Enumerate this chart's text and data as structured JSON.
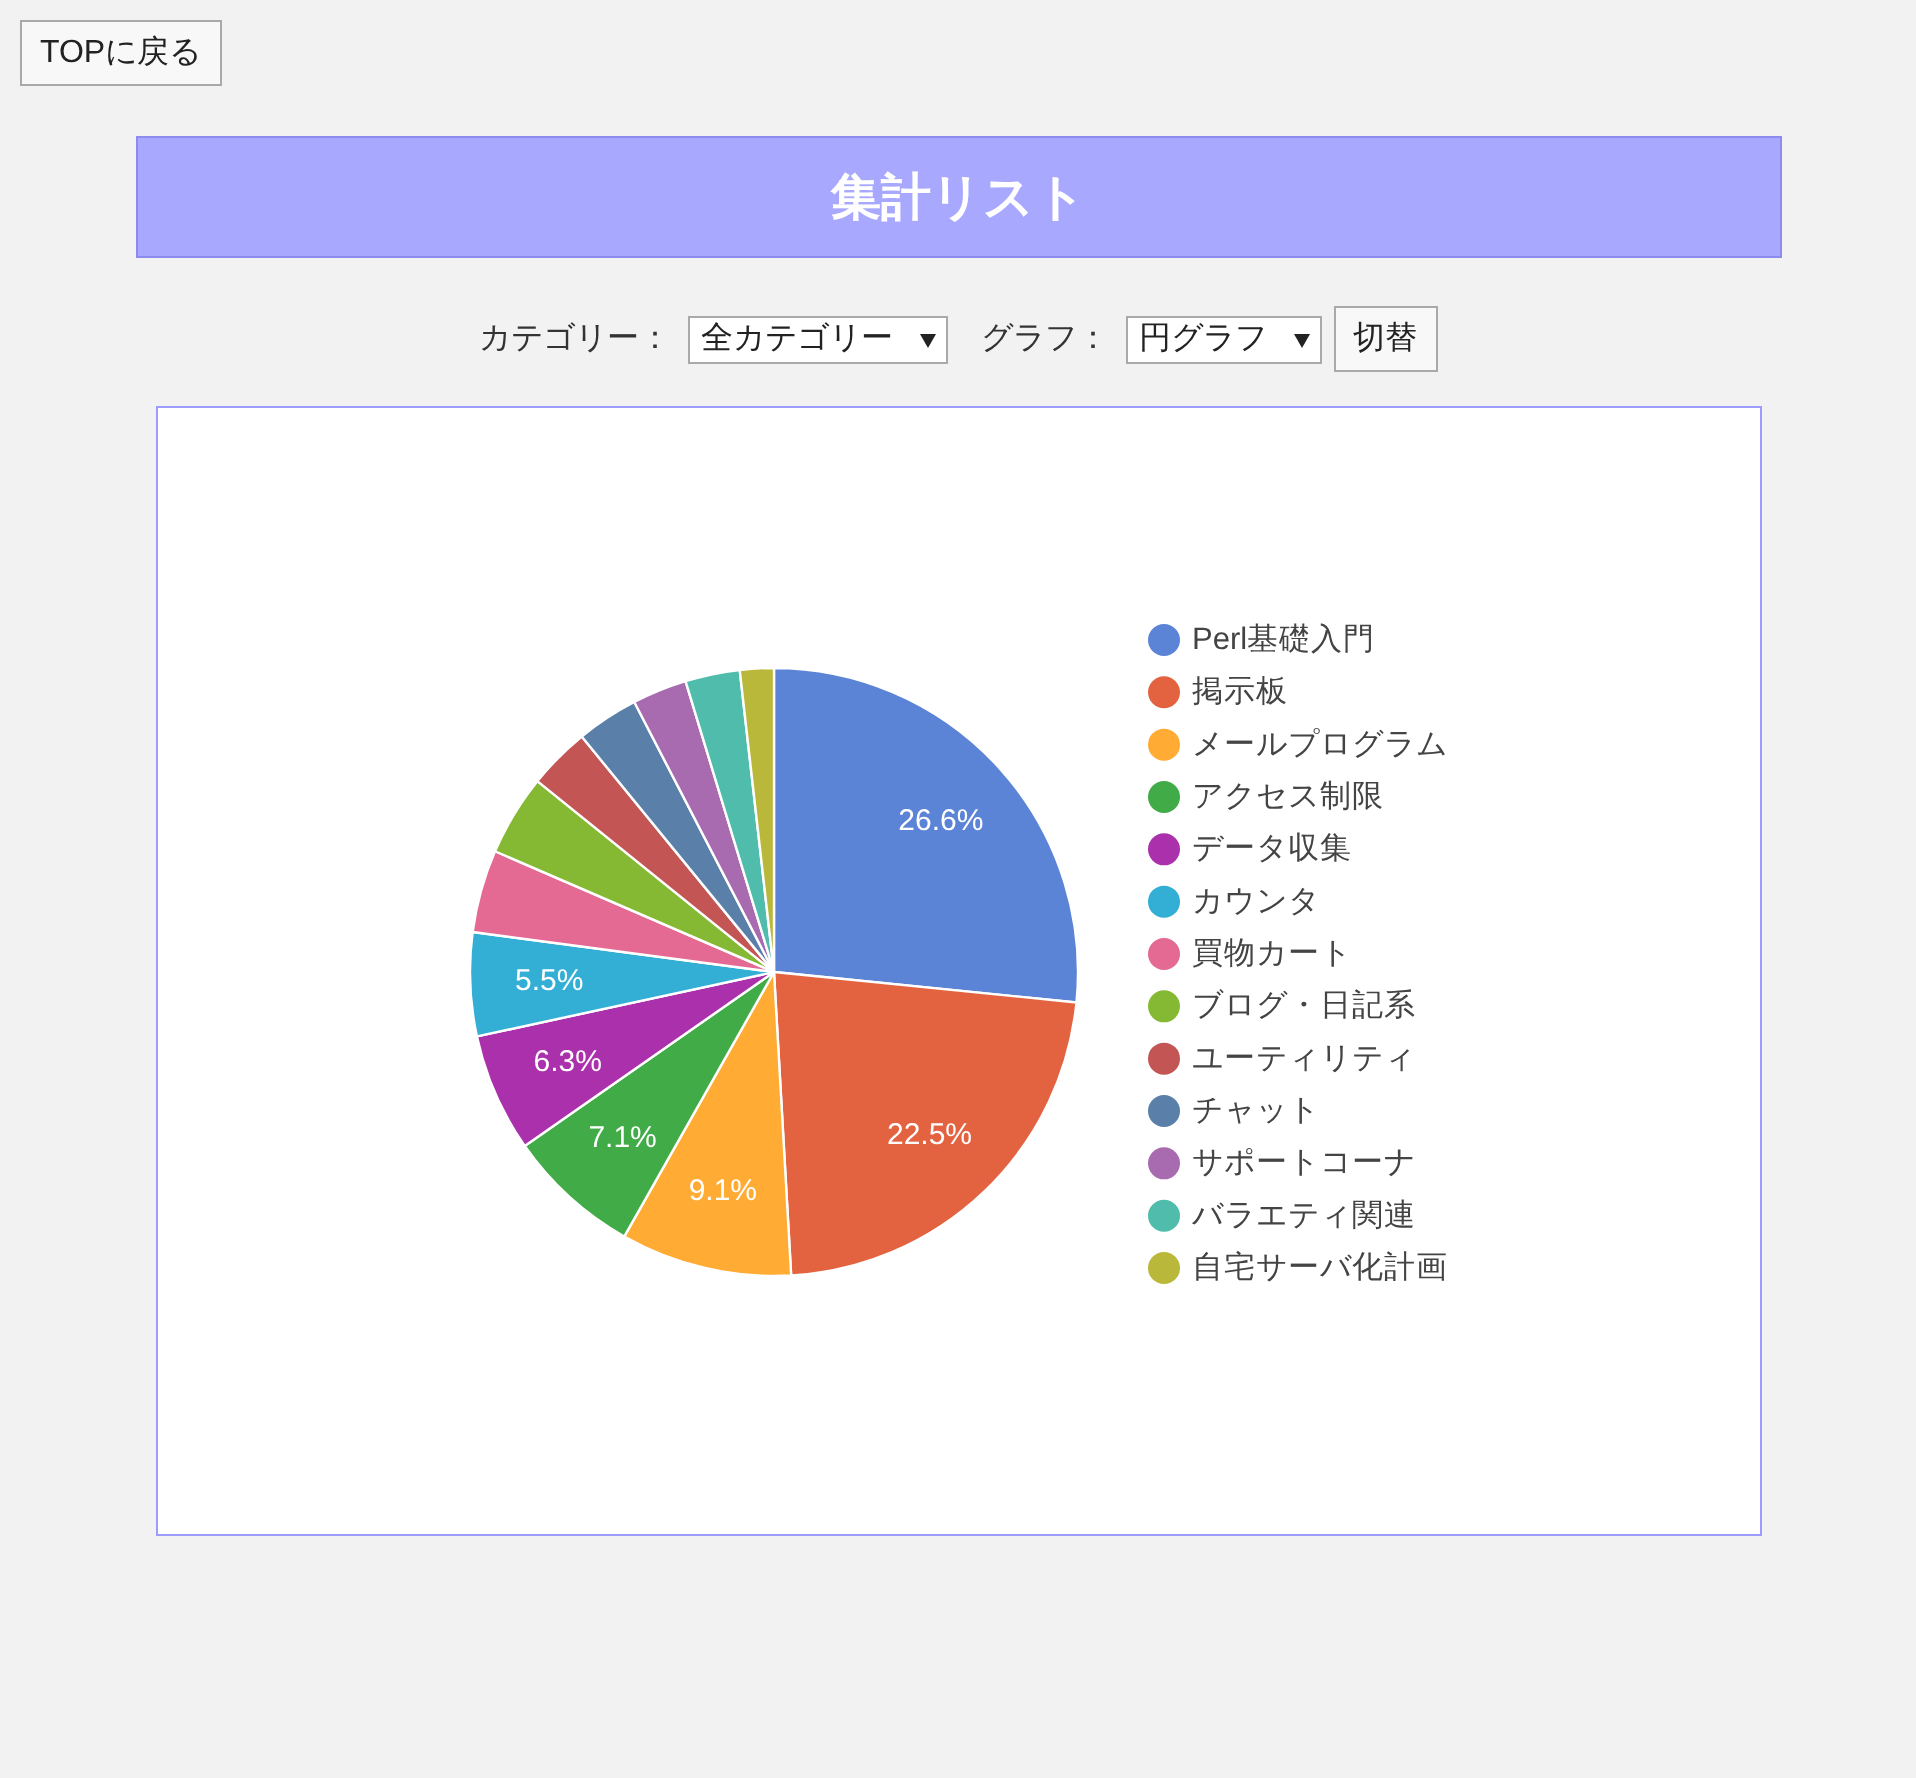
{
  "chart_data": {
    "type": "pie",
    "title": "集計リスト",
    "categories": [
      "Perl基礎入門",
      "掲示板",
      "メールプログラム",
      "アクセス制限",
      "データ収集",
      "カウンタ",
      "買物カート",
      "ブログ・日記系",
      "ユーティリティ",
      "チャット",
      "サポートコーナ",
      "バラエティ関連",
      "自宅サーバ化計画"
    ],
    "values": [
      26.6,
      22.5,
      9.1,
      7.1,
      6.3,
      5.5,
      4.4,
      4.3,
      3.3,
      3.3,
      2.9,
      2.9,
      1.8
    ],
    "value_labels": [
      "26.6%",
      "22.5%",
      "9.1%",
      "7.1%",
      "6.3%",
      "5.5%",
      null,
      null,
      null,
      null,
      null,
      null,
      null
    ],
    "colors": [
      "#5c84d6",
      "#e3623f",
      "#ffab34",
      "#41ab47",
      "#ab30ab",
      "#33aed5",
      "#e46a94",
      "#86b933",
      "#c35655",
      "#5a7fa8",
      "#a96bb0",
      "#4fbcac",
      "#b9b83a"
    ],
    "legend": "right",
    "annotations": [
      "TOPに戻る",
      "カテゴリー：",
      "全カテゴリー",
      "グラフ：",
      "円グラフ",
      "切替"
    ]
  }
}
